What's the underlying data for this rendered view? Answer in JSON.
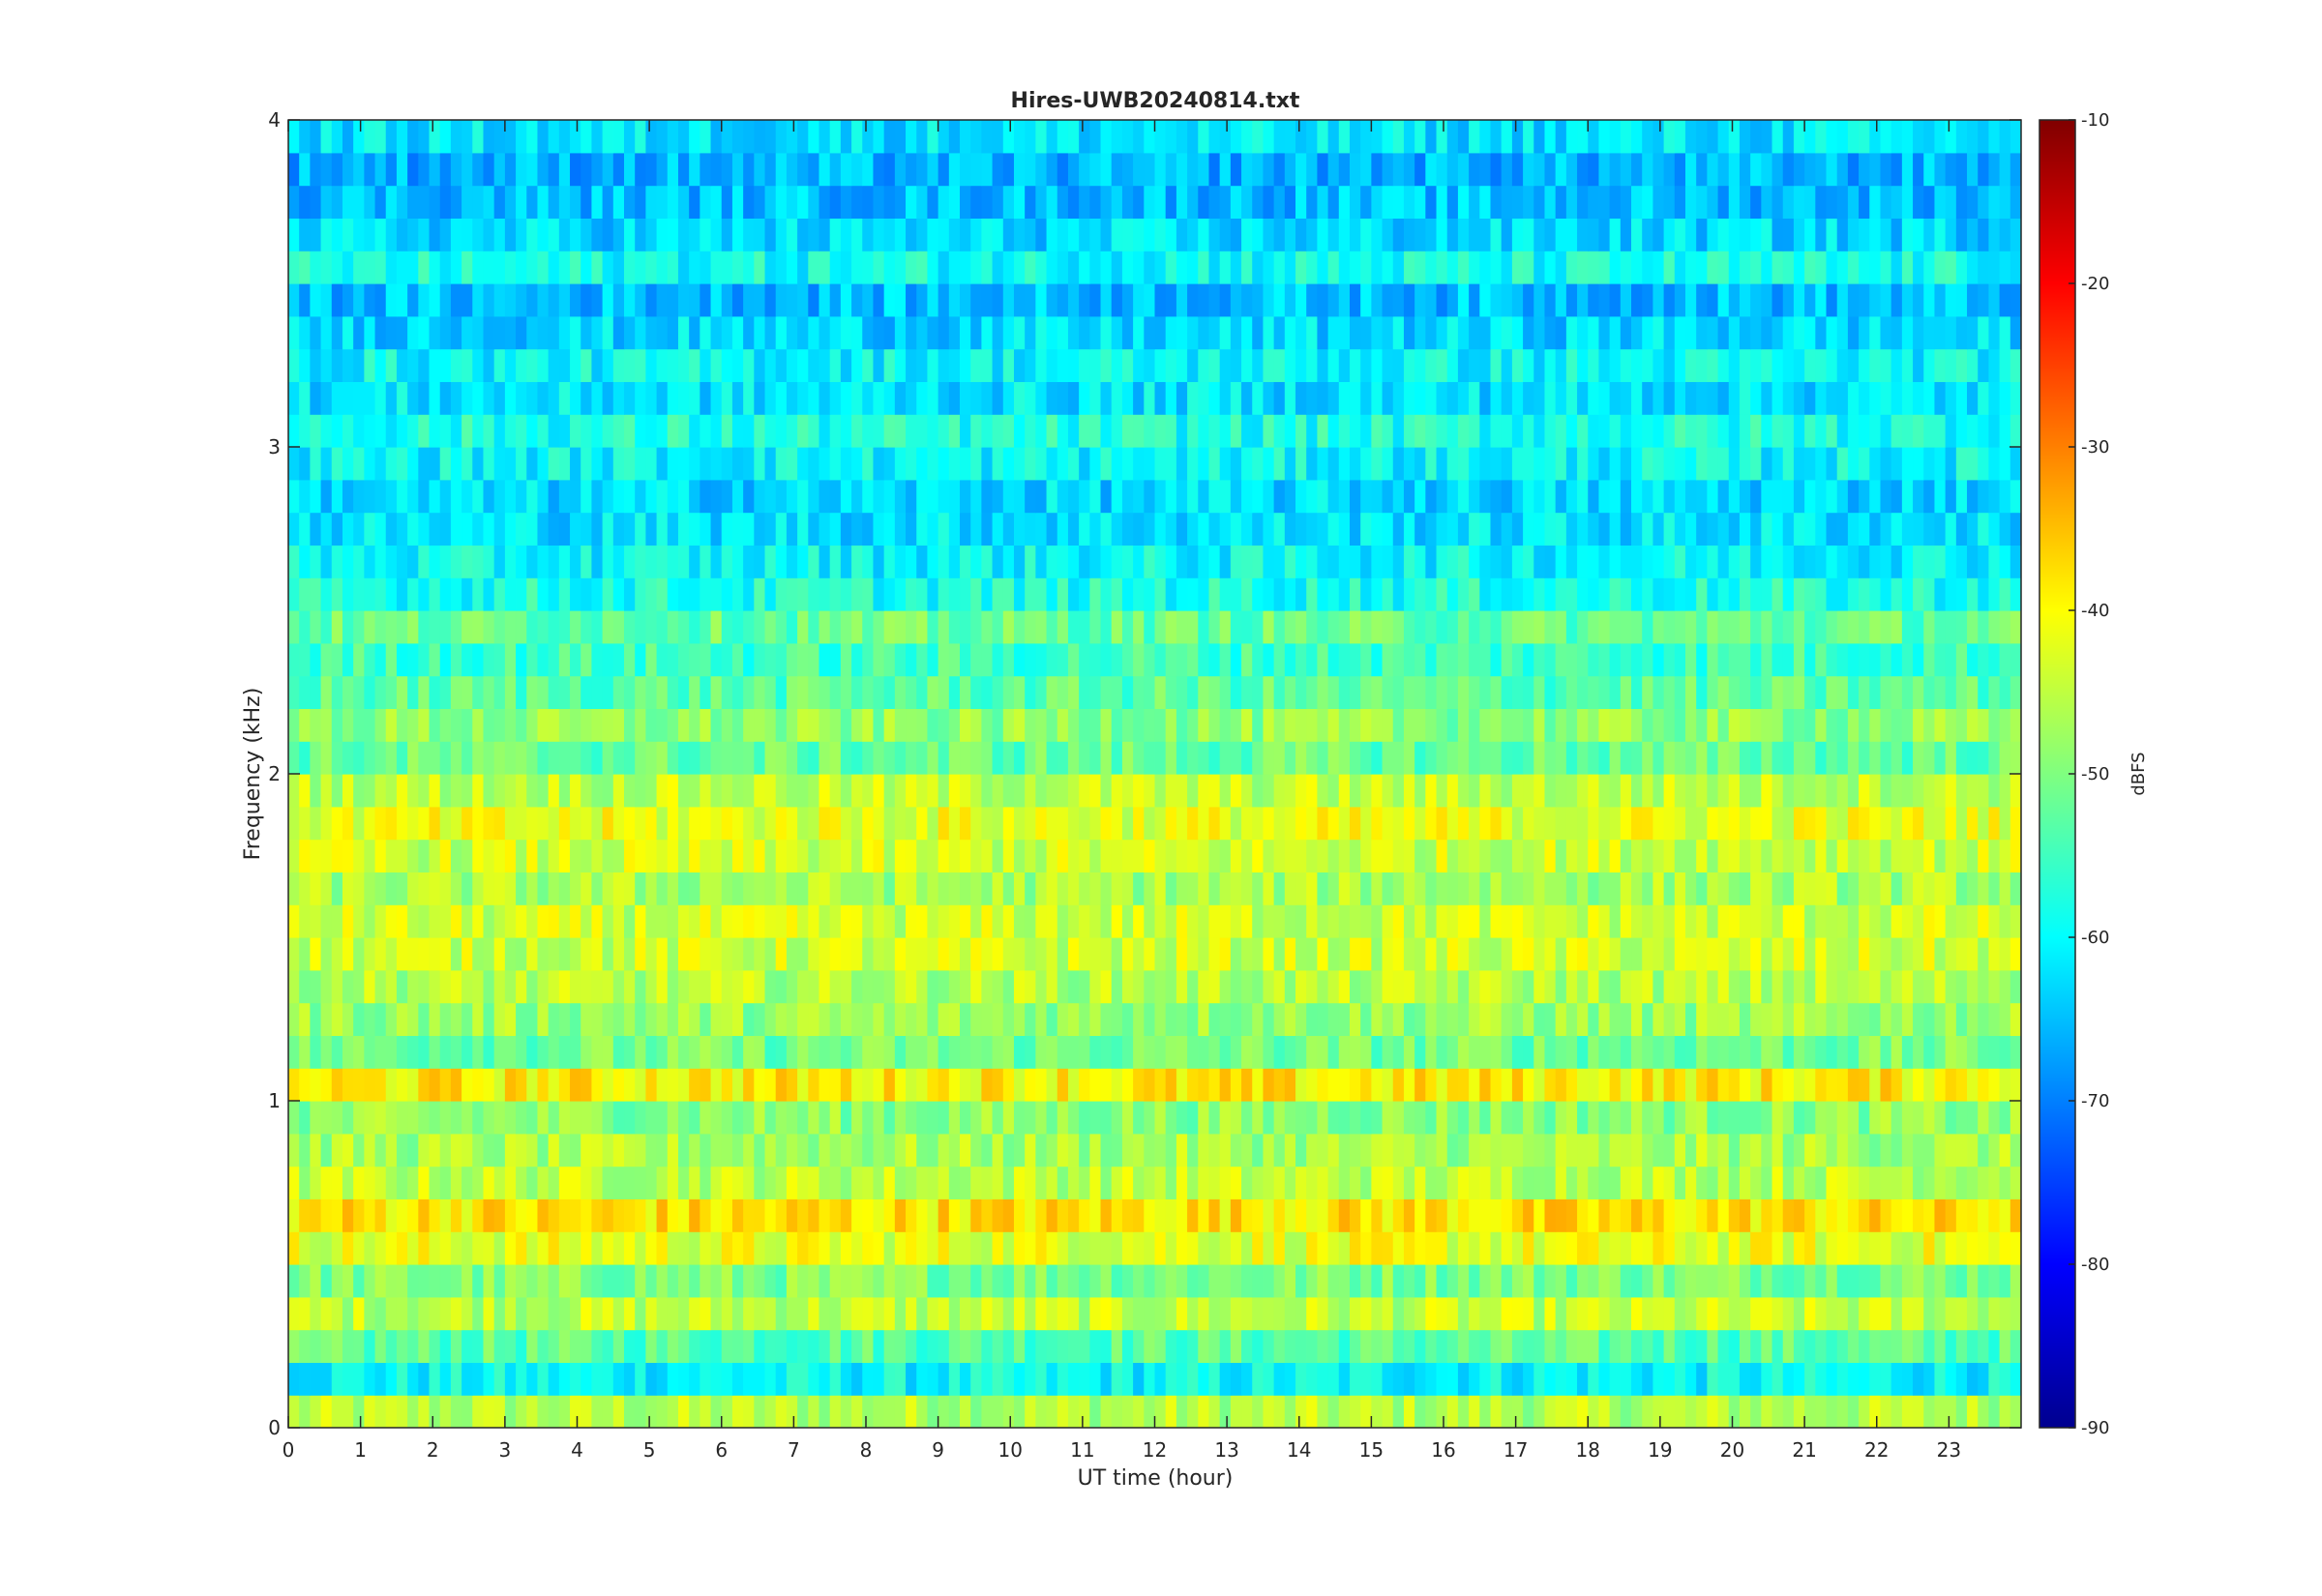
{
  "chart_data": {
    "type": "heatmap",
    "title": "Hires-UWB20240814.txt",
    "xlabel": "UT time (hour)",
    "ylabel": "Frequency (kHz)",
    "colorbar_label": "dBFS",
    "xlim": [
      0,
      24
    ],
    "ylim": [
      0,
      4
    ],
    "clim": [
      -90,
      -10
    ],
    "colormap": "jet",
    "x_ticks": [
      0,
      1,
      2,
      3,
      4,
      5,
      6,
      7,
      8,
      9,
      10,
      11,
      12,
      13,
      14,
      15,
      16,
      17,
      18,
      19,
      20,
      21,
      22,
      23
    ],
    "x_tick_labels": [
      "0",
      "1",
      "2",
      "3",
      "4",
      "5",
      "6",
      "7",
      "8",
      "9",
      "10",
      "11",
      "12",
      "13",
      "14",
      "15",
      "16",
      "17",
      "18",
      "19",
      "20",
      "21",
      "22",
      "23"
    ],
    "y_ticks": [
      0,
      1,
      2,
      3,
      4
    ],
    "y_tick_labels": [
      "0",
      "1",
      "2",
      "3",
      "4"
    ],
    "colorbar_ticks": [
      -90,
      -80,
      -70,
      -60,
      -50,
      -40,
      -30,
      -20,
      -10
    ],
    "colorbar_tick_labels": [
      "-90",
      "-80",
      "-70",
      "-60",
      "-50",
      "-40",
      "-30",
      "-20",
      "-10"
    ],
    "grid": false,
    "frequency_bands": [
      {
        "f_khz": 0.05,
        "level_dbfs": -46
      },
      {
        "f_khz": 0.15,
        "level_dbfs": -60
      },
      {
        "f_khz": 0.25,
        "level_dbfs": -53
      },
      {
        "f_khz": 0.35,
        "level_dbfs": -45
      },
      {
        "f_khz": 0.45,
        "level_dbfs": -50
      },
      {
        "f_khz": 0.55,
        "level_dbfs": -42
      },
      {
        "f_khz": 0.65,
        "level_dbfs": -38
      },
      {
        "f_khz": 0.75,
        "level_dbfs": -45
      },
      {
        "f_khz": 0.85,
        "level_dbfs": -47
      },
      {
        "f_khz": 0.95,
        "level_dbfs": -49
      },
      {
        "f_khz": 1.05,
        "level_dbfs": -39
      },
      {
        "f_khz": 1.15,
        "level_dbfs": -51
      },
      {
        "f_khz": 1.25,
        "level_dbfs": -48
      },
      {
        "f_khz": 1.35,
        "level_dbfs": -46
      },
      {
        "f_khz": 1.45,
        "level_dbfs": -44
      },
      {
        "f_khz": 1.55,
        "level_dbfs": -44
      },
      {
        "f_khz": 1.65,
        "level_dbfs": -47
      },
      {
        "f_khz": 1.75,
        "level_dbfs": -44
      },
      {
        "f_khz": 1.85,
        "level_dbfs": -42
      },
      {
        "f_khz": 1.95,
        "level_dbfs": -45
      },
      {
        "f_khz": 2.05,
        "level_dbfs": -52
      },
      {
        "f_khz": 2.15,
        "level_dbfs": -49
      },
      {
        "f_khz": 2.25,
        "level_dbfs": -53
      },
      {
        "f_khz": 2.35,
        "level_dbfs": -55
      },
      {
        "f_khz": 2.45,
        "level_dbfs": -52
      },
      {
        "f_khz": 2.55,
        "level_dbfs": -58
      },
      {
        "f_khz": 2.65,
        "level_dbfs": -60
      },
      {
        "f_khz": 2.75,
        "level_dbfs": -62
      },
      {
        "f_khz": 2.85,
        "level_dbfs": -63
      },
      {
        "f_khz": 2.95,
        "level_dbfs": -60
      },
      {
        "f_khz": 3.05,
        "level_dbfs": -58
      },
      {
        "f_khz": 3.15,
        "level_dbfs": -62
      },
      {
        "f_khz": 3.25,
        "level_dbfs": -60
      },
      {
        "f_khz": 3.35,
        "level_dbfs": -63
      },
      {
        "f_khz": 3.45,
        "level_dbfs": -65
      },
      {
        "f_khz": 3.55,
        "level_dbfs": -59
      },
      {
        "f_khz": 3.65,
        "level_dbfs": -63
      },
      {
        "f_khz": 3.75,
        "level_dbfs": -65
      },
      {
        "f_khz": 3.85,
        "level_dbfs": -66
      },
      {
        "f_khz": 3.95,
        "level_dbfs": -62
      }
    ]
  }
}
